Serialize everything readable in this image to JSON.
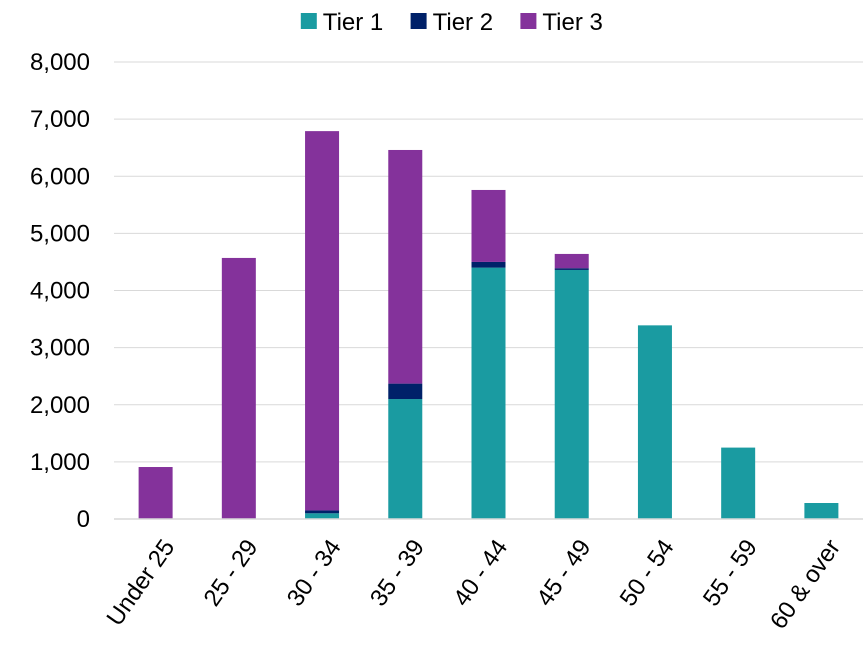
{
  "chart_data": {
    "type": "bar",
    "stacked": true,
    "title": "",
    "xlabel": "",
    "ylabel": "",
    "categories": [
      "Under 25",
      "25 - 29",
      "30 - 34",
      "35 - 39",
      "40 - 44",
      "45 - 49",
      "50 - 54",
      "55 - 59",
      "60 & over"
    ],
    "series": [
      {
        "name": "Tier 1",
        "color": "#1a9ba1",
        "values": [
          0,
          0,
          100,
          2100,
          4400,
          4360,
          3390,
          1250,
          280
        ]
      },
      {
        "name": "Tier 2",
        "color": "#002169",
        "values": [
          0,
          0,
          50,
          270,
          100,
          30,
          0,
          0,
          0
        ]
      },
      {
        "name": "Tier 3",
        "color": "#84329b",
        "values": [
          910,
          4570,
          6640,
          4090,
          1260,
          250,
          0,
          0,
          0
        ]
      }
    ],
    "ylim": [
      0,
      8000
    ],
    "yticks": [
      0,
      1000,
      2000,
      3000,
      4000,
      5000,
      6000,
      7000,
      8000
    ],
    "ytick_labels": [
      "0",
      "1,000",
      "2,000",
      "3,000",
      "4,000",
      "5,000",
      "6,000",
      "7,000",
      "8,000"
    ],
    "grid": true,
    "legend_position": "top"
  }
}
